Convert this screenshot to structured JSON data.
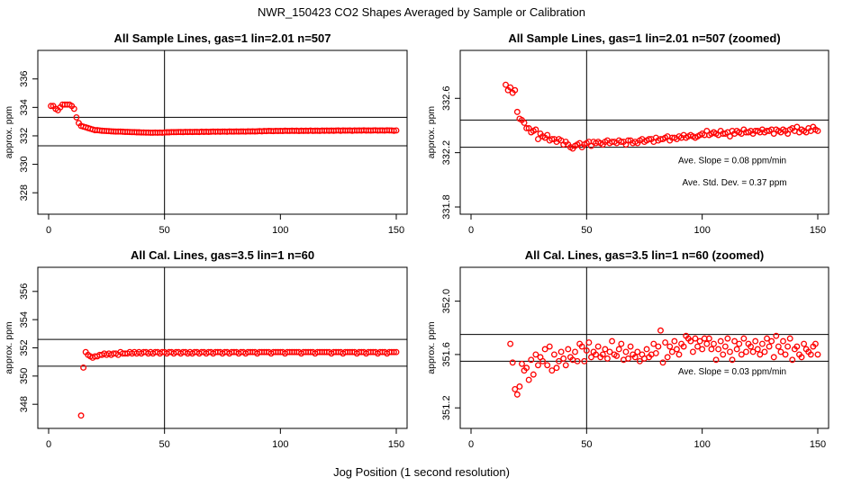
{
  "figure": {
    "title": "NWR_150423  CO2 Shapes Averaged by Sample or Calibration",
    "xlabel": "Jog Position (1 second resolution)",
    "marker_color": "#ff0000"
  },
  "chart_data": [
    {
      "type": "scatter",
      "title": "All Sample Lines, gas=1 lin=2.01 n=507",
      "ylabel": "approx. ppm",
      "xlim": [
        0,
        150
      ],
      "ylim": [
        327,
        337.5
      ],
      "xticks": [
        "0",
        "50",
        "100",
        "150"
      ],
      "yticks": [
        "328",
        "330",
        "332",
        "334",
        "336"
      ],
      "vline": 50,
      "hlines": [
        333.3,
        331.3
      ],
      "annotations": [],
      "x": [
        1,
        2,
        3,
        4,
        5,
        6,
        7,
        8,
        9,
        10,
        11,
        12,
        13,
        14,
        15,
        16,
        17,
        18,
        19,
        20,
        21,
        22,
        23,
        24,
        25,
        26,
        27,
        28,
        29,
        30,
        31,
        32,
        33,
        34,
        35,
        36,
        37,
        38,
        39,
        40,
        41,
        42,
        43,
        44,
        45,
        46,
        47,
        48,
        49,
        50,
        51,
        52,
        53,
        54,
        55,
        56,
        57,
        58,
        59,
        60,
        61,
        62,
        63,
        64,
        65,
        66,
        67,
        68,
        69,
        70,
        71,
        72,
        73,
        74,
        75,
        76,
        77,
        78,
        79,
        80,
        81,
        82,
        83,
        84,
        85,
        86,
        87,
        88,
        89,
        90,
        91,
        92,
        93,
        94,
        95,
        96,
        97,
        98,
        99,
        100,
        101,
        102,
        103,
        104,
        105,
        106,
        107,
        108,
        109,
        110,
        111,
        112,
        113,
        114,
        115,
        116,
        117,
        118,
        119,
        120,
        121,
        122,
        123,
        124,
        125,
        126,
        127,
        128,
        129,
        130,
        131,
        132,
        133,
        134,
        135,
        136,
        137,
        138,
        139,
        140,
        141,
        142,
        143,
        144,
        145,
        146,
        147,
        148,
        149,
        150
      ],
      "y": [
        334.1,
        334.1,
        333.9,
        333.8,
        334.0,
        334.2,
        334.2,
        334.2,
        334.2,
        334.1,
        333.9,
        333.3,
        332.9,
        332.7,
        332.65,
        332.6,
        332.55,
        332.5,
        332.45,
        332.4,
        332.4,
        332.38,
        332.36,
        332.35,
        332.34,
        332.33,
        332.32,
        332.31,
        332.3,
        332.3,
        332.3,
        332.29,
        332.28,
        332.28,
        332.27,
        332.26,
        332.26,
        332.25,
        332.25,
        332.24,
        332.24,
        332.23,
        332.23,
        332.22,
        332.22,
        332.23,
        332.22,
        332.23,
        332.22,
        332.24,
        332.25,
        332.25,
        332.26,
        332.26,
        332.26,
        332.27,
        332.27,
        332.26,
        332.28,
        332.27,
        332.28,
        332.27,
        332.28,
        332.28,
        332.27,
        332.29,
        332.28,
        332.29,
        332.28,
        332.29,
        332.3,
        332.29,
        332.3,
        332.29,
        332.3,
        332.3,
        332.29,
        332.31,
        332.3,
        332.3,
        332.31,
        332.3,
        332.31,
        332.31,
        332.3,
        332.32,
        332.31,
        332.32,
        332.31,
        332.32,
        332.33,
        332.32,
        332.34,
        332.33,
        332.35,
        332.34,
        332.33,
        332.35,
        332.34,
        332.35,
        332.34,
        332.36,
        332.35,
        332.35,
        332.36,
        332.35,
        332.36,
        332.34,
        332.36,
        332.35,
        332.36,
        332.35,
        332.37,
        332.35,
        332.36,
        332.36,
        332.35,
        332.37,
        332.36,
        332.37,
        332.36,
        332.37,
        332.36,
        332.37,
        332.38,
        332.36,
        332.38,
        332.37,
        332.37,
        332.38,
        332.36,
        332.38,
        332.37,
        332.38,
        332.37,
        332.39,
        332.37,
        332.38,
        332.37,
        332.38,
        332.39,
        332.37,
        332.38,
        332.38,
        332.37,
        332.39,
        332.38,
        332.38,
        332.36,
        332.38
      ]
    },
    {
      "type": "scatter",
      "title": "All Sample Lines, gas=1 lin=2.01 n=507 (zoomed)",
      "ylabel": "approx. ppm",
      "xlim": [
        0,
        150
      ],
      "ylim": [
        331.8,
        332.9
      ],
      "xticks": [
        "0",
        "50",
        "100",
        "150"
      ],
      "yticks": [
        "331.8",
        "332.2",
        "332.6"
      ],
      "vline": 50,
      "hlines": [
        332.44,
        332.24
      ],
      "annotations": [
        {
          "text": "Ave. Slope =  0.08  ppm/min",
          "x": 113,
          "y": 332.12
        },
        {
          "text": "Ave. Std. Dev. =  0.37  ppm",
          "x": 114,
          "y": 331.96
        }
      ],
      "x": [
        15,
        16,
        17,
        18,
        19,
        20,
        21,
        22,
        23,
        24,
        25,
        26,
        27,
        28,
        29,
        30,
        31,
        32,
        33,
        34,
        35,
        36,
        37,
        38,
        39,
        40,
        41,
        42,
        43,
        44,
        45,
        46,
        47,
        48,
        49,
        50,
        51,
        52,
        53,
        54,
        55,
        56,
        57,
        58,
        59,
        60,
        61,
        62,
        63,
        64,
        65,
        66,
        67,
        68,
        69,
        70,
        71,
        72,
        73,
        74,
        75,
        76,
        77,
        78,
        79,
        80,
        81,
        82,
        83,
        84,
        85,
        86,
        87,
        88,
        89,
        90,
        91,
        92,
        93,
        94,
        95,
        96,
        97,
        98,
        99,
        100,
        101,
        102,
        103,
        104,
        105,
        106,
        107,
        108,
        109,
        110,
        111,
        112,
        113,
        114,
        115,
        116,
        117,
        118,
        119,
        120,
        121,
        122,
        123,
        124,
        125,
        126,
        127,
        128,
        129,
        130,
        131,
        132,
        133,
        134,
        135,
        136,
        137,
        138,
        139,
        140,
        141,
        142,
        143,
        144,
        145,
        146,
        147,
        148,
        149,
        150
      ],
      "y": [
        332.7,
        332.66,
        332.68,
        332.64,
        332.66,
        332.5,
        332.45,
        332.44,
        332.42,
        332.38,
        332.38,
        332.35,
        332.36,
        332.37,
        332.3,
        332.34,
        332.32,
        332.31,
        332.33,
        332.29,
        332.3,
        332.3,
        332.28,
        332.3,
        332.29,
        332.26,
        332.28,
        332.26,
        332.24,
        332.23,
        332.25,
        332.26,
        332.27,
        332.24,
        332.26,
        332.27,
        332.28,
        332.25,
        332.28,
        332.27,
        332.28,
        332.27,
        332.26,
        332.28,
        332.29,
        332.27,
        332.28,
        332.28,
        332.27,
        332.29,
        332.28,
        332.28,
        332.26,
        332.29,
        332.29,
        332.27,
        332.28,
        332.27,
        332.29,
        332.3,
        332.28,
        332.29,
        332.3,
        332.3,
        332.28,
        332.31,
        332.29,
        332.3,
        332.3,
        332.31,
        332.32,
        332.29,
        332.31,
        332.31,
        332.3,
        332.32,
        332.31,
        332.33,
        332.31,
        332.32,
        332.33,
        332.32,
        332.31,
        332.32,
        332.33,
        332.34,
        332.33,
        332.36,
        332.33,
        332.34,
        332.35,
        332.34,
        332.33,
        332.36,
        332.34,
        332.34,
        332.35,
        332.32,
        332.36,
        332.34,
        332.36,
        332.35,
        332.34,
        332.37,
        332.35,
        332.35,
        332.36,
        332.34,
        332.36,
        332.36,
        332.35,
        332.37,
        332.35,
        332.36,
        332.36,
        332.37,
        332.34,
        332.37,
        332.36,
        332.35,
        332.37,
        332.36,
        332.34,
        332.37,
        332.38,
        332.36,
        332.39,
        332.35,
        332.37,
        332.36,
        332.35,
        332.38,
        332.36,
        332.39,
        332.37,
        332.36
      ]
    },
    {
      "type": "scatter",
      "title": "All Cal. Lines, gas=3.5 lin=1 n=60",
      "ylabel": "approx. ppm",
      "xlim": [
        0,
        150
      ],
      "ylim": [
        346.8,
        357.2
      ],
      "xticks": [
        "0",
        "50",
        "100",
        "150"
      ],
      "yticks": [
        "348",
        "350",
        "352",
        "354",
        "356"
      ],
      "vline": 50,
      "hlines": [
        352.6,
        350.7
      ],
      "annotations": [],
      "x": [
        14,
        15,
        16,
        17,
        18,
        19,
        20,
        21,
        22,
        23,
        24,
        25,
        26,
        27,
        28,
        29,
        30,
        31,
        32,
        33,
        34,
        35,
        36,
        37,
        38,
        39,
        40,
        41,
        42,
        43,
        44,
        45,
        46,
        47,
        48,
        49,
        50,
        51,
        52,
        53,
        54,
        55,
        56,
        57,
        58,
        59,
        60,
        61,
        62,
        63,
        64,
        65,
        66,
        67,
        68,
        69,
        70,
        71,
        72,
        73,
        74,
        75,
        76,
        77,
        78,
        79,
        80,
        81,
        82,
        83,
        84,
        85,
        86,
        87,
        88,
        89,
        90,
        91,
        92,
        93,
        94,
        95,
        96,
        97,
        98,
        99,
        100,
        101,
        102,
        103,
        104,
        105,
        106,
        107,
        108,
        109,
        110,
        111,
        112,
        113,
        114,
        115,
        116,
        117,
        118,
        119,
        120,
        121,
        122,
        123,
        124,
        125,
        126,
        127,
        128,
        129,
        130,
        131,
        132,
        133,
        134,
        135,
        136,
        137,
        138,
        139,
        140,
        141,
        142,
        143,
        144,
        145,
        146,
        147,
        148,
        149,
        150
      ],
      "y": [
        347.2,
        350.6,
        351.7,
        351.5,
        351.4,
        351.3,
        351.4,
        351.4,
        351.5,
        351.5,
        351.6,
        351.5,
        351.6,
        351.5,
        351.6,
        351.6,
        351.5,
        351.7,
        351.6,
        351.6,
        351.6,
        351.7,
        351.6,
        351.7,
        351.6,
        351.7,
        351.6,
        351.7,
        351.7,
        351.6,
        351.7,
        351.6,
        351.7,
        351.7,
        351.6,
        351.7,
        351.7,
        351.6,
        351.7,
        351.7,
        351.6,
        351.7,
        351.7,
        351.6,
        351.7,
        351.7,
        351.6,
        351.7,
        351.6,
        351.7,
        351.7,
        351.6,
        351.7,
        351.7,
        351.6,
        351.7,
        351.7,
        351.6,
        351.7,
        351.7,
        351.7,
        351.6,
        351.7,
        351.7,
        351.6,
        351.7,
        351.7,
        351.7,
        351.6,
        351.7,
        351.7,
        351.6,
        351.7,
        351.7,
        351.7,
        351.7,
        351.6,
        351.7,
        351.7,
        351.7,
        351.7,
        351.7,
        351.6,
        351.7,
        351.7,
        351.7,
        351.7,
        351.7,
        351.6,
        351.7,
        351.7,
        351.7,
        351.7,
        351.7,
        351.7,
        351.6,
        351.7,
        351.7,
        351.7,
        351.7,
        351.7,
        351.6,
        351.7,
        351.7,
        351.7,
        351.7,
        351.7,
        351.7,
        351.6,
        351.7,
        351.7,
        351.7,
        351.7,
        351.6,
        351.7,
        351.7,
        351.7,
        351.7,
        351.7,
        351.6,
        351.7,
        351.7,
        351.7,
        351.6,
        351.7,
        351.7,
        351.7,
        351.7,
        351.6,
        351.7,
        351.7,
        351.7,
        351.6,
        351.7,
        351.7,
        351.7,
        351.7
      ]
    },
    {
      "type": "scatter",
      "title": "All Cal. Lines, gas=3.5 lin=1 n=60 (zoomed)",
      "ylabel": "approx. ppm",
      "xlim": [
        0,
        150
      ],
      "ylim": [
        351.1,
        352.2
      ],
      "xticks": [
        "0",
        "50",
        "100",
        "150"
      ],
      "yticks": [
        "351.2",
        "351.6",
        "352.0"
      ],
      "vline": 50,
      "hlines": [
        351.75,
        351.55
      ],
      "annotations": [
        {
          "text": "Ave. Slope =  0.03  ppm/min",
          "x": 113,
          "y": 351.45
        }
      ],
      "x": [
        17,
        18,
        19,
        20,
        21,
        22,
        23,
        24,
        25,
        26,
        27,
        28,
        29,
        30,
        31,
        32,
        33,
        34,
        35,
        36,
        37,
        38,
        39,
        40,
        41,
        42,
        43,
        44,
        45,
        46,
        47,
        48,
        49,
        50,
        51,
        52,
        53,
        54,
        55,
        56,
        57,
        58,
        59,
        60,
        61,
        62,
        63,
        64,
        65,
        66,
        67,
        68,
        69,
        70,
        71,
        72,
        73,
        74,
        75,
        76,
        77,
        78,
        79,
        80,
        81,
        82,
        83,
        84,
        85,
        86,
        87,
        88,
        89,
        90,
        91,
        92,
        93,
        94,
        95,
        96,
        97,
        98,
        99,
        100,
        101,
        102,
        103,
        104,
        105,
        106,
        107,
        108,
        109,
        110,
        111,
        112,
        113,
        114,
        115,
        116,
        117,
        118,
        119,
        120,
        121,
        122,
        123,
        124,
        125,
        126,
        127,
        128,
        129,
        130,
        131,
        132,
        133,
        134,
        135,
        136,
        137,
        138,
        139,
        140,
        141,
        142,
        143,
        144,
        145,
        146,
        147,
        148,
        149,
        150
      ],
      "y": [
        351.68,
        351.54,
        351.34,
        351.3,
        351.36,
        351.53,
        351.48,
        351.5,
        351.41,
        351.56,
        351.45,
        351.6,
        351.52,
        351.58,
        351.55,
        351.64,
        351.52,
        351.66,
        351.48,
        351.6,
        351.5,
        351.55,
        351.62,
        351.57,
        351.52,
        351.64,
        351.58,
        351.56,
        351.62,
        351.55,
        351.68,
        351.66,
        351.55,
        351.63,
        351.69,
        351.58,
        351.62,
        351.6,
        351.66,
        351.58,
        351.6,
        351.64,
        351.57,
        351.62,
        351.7,
        351.6,
        351.59,
        351.64,
        351.68,
        351.56,
        351.62,
        351.57,
        351.66,
        351.6,
        351.58,
        351.62,
        351.55,
        351.6,
        351.57,
        351.64,
        351.58,
        351.6,
        351.68,
        351.61,
        351.66,
        351.78,
        351.54,
        351.69,
        351.58,
        351.66,
        351.62,
        351.7,
        351.64,
        351.6,
        351.68,
        351.66,
        351.74,
        351.72,
        351.7,
        351.62,
        351.72,
        351.66,
        351.7,
        351.64,
        351.72,
        351.68,
        351.72,
        351.64,
        351.68,
        351.56,
        351.64,
        351.7,
        351.6,
        351.66,
        351.72,
        351.62,
        351.56,
        351.7,
        351.64,
        351.68,
        351.6,
        351.72,
        351.62,
        351.68,
        351.66,
        351.62,
        351.7,
        351.64,
        351.6,
        351.68,
        351.62,
        351.72,
        351.66,
        351.7,
        351.58,
        351.74,
        351.66,
        351.62,
        351.7,
        351.6,
        351.66,
        351.72,
        351.56,
        351.64,
        351.66,
        351.6,
        351.58,
        351.68,
        351.64,
        351.62,
        351.6,
        351.66,
        351.68,
        351.6
      ]
    }
  ]
}
